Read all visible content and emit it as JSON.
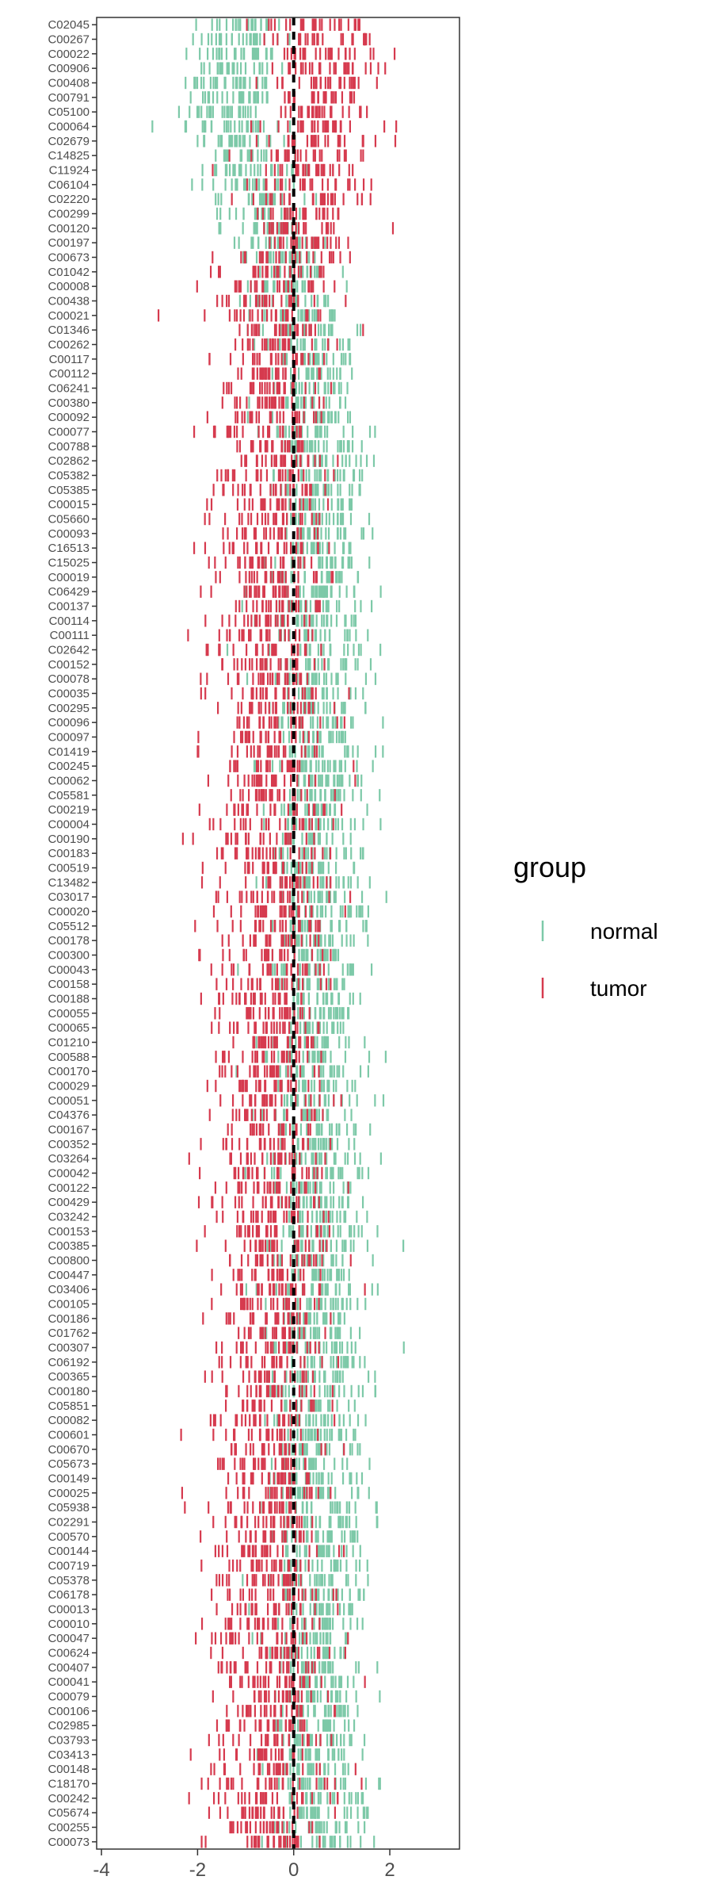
{
  "chart_data": {
    "type": "strip",
    "categories": [
      "C02045",
      "C00267",
      "C00022",
      "C00906",
      "C00408",
      "C00791",
      "C05100",
      "C00064",
      "C02679",
      "C14825",
      "C11924",
      "C06104",
      "C02220",
      "C00299",
      "C00120",
      "C00197",
      "C00673",
      "C01042",
      "C00008",
      "C00438",
      "C00021",
      "C01346",
      "C00262",
      "C00117",
      "C00112",
      "C06241",
      "C00380",
      "C00092",
      "C00077",
      "C00788",
      "C02862",
      "C05382",
      "C05385",
      "C00015",
      "C05660",
      "C00093",
      "C16513",
      "C15025",
      "C00019",
      "C06429",
      "C00137",
      "C00114",
      "C00111",
      "C02642",
      "C00152",
      "C00078",
      "C00035",
      "C00295",
      "C00096",
      "C00097",
      "C01419",
      "C00245",
      "C00062",
      "C05581",
      "C00219",
      "C00004",
      "C00190",
      "C00183",
      "C00519",
      "C13482",
      "C03017",
      "C00020",
      "C05512",
      "C00178",
      "C00300",
      "C00043",
      "C00158",
      "C00188",
      "C00055",
      "C00065",
      "C01210",
      "C00588",
      "C00170",
      "C00029",
      "C00051",
      "C04376",
      "C00167",
      "C00352",
      "C03264",
      "C00042",
      "C00122",
      "C00429",
      "C03242",
      "C00153",
      "C00385",
      "C00800",
      "C00447",
      "C03406",
      "C00105",
      "C00186",
      "C01762",
      "C00307",
      "C06192",
      "C00365",
      "C00180",
      "C05851",
      "C00082",
      "C00601",
      "C00670",
      "C05673",
      "C00149",
      "C00025",
      "C05938",
      "C02291",
      "C00570",
      "C00144",
      "C00719",
      "C05378",
      "C06178",
      "C00013",
      "C00010",
      "C00047",
      "C00624",
      "C00407",
      "C00041",
      "C00079",
      "C00106",
      "C02985",
      "C03793",
      "C03413",
      "C00148",
      "C18170",
      "C00242",
      "C05674",
      "C00255",
      "C00073"
    ],
    "xlim": [
      -4.1,
      3.45
    ],
    "xticks": [
      "-4",
      "-2",
      "0",
      "2"
    ],
    "reference_line_x": 0,
    "legend": {
      "title": "group",
      "position": "right",
      "entries": [
        {
          "name": "normal",
          "color": "#7dc9a8"
        },
        {
          "name": "tumor",
          "color": "#d63a4e"
        }
      ]
    },
    "series": [
      {
        "name": "normal",
        "color": "#7dc9a8",
        "mean_by_row": [
          -1.0,
          -1.1,
          -1.2,
          -1.3,
          -1.3,
          -1.3,
          -1.3,
          -1.2,
          -1.1,
          -1.0,
          -0.9,
          -0.8,
          -0.7,
          -0.6,
          -0.5,
          -0.4,
          -0.3,
          -0.2,
          -0.1,
          0.0,
          0.1,
          0.2,
          0.3,
          0.35,
          0.4,
          0.45,
          0.5,
          0.5,
          0.5,
          0.5,
          0.5,
          0.5,
          0.5,
          0.5,
          0.5,
          0.5,
          0.5,
          0.5,
          0.5,
          0.5,
          0.5,
          0.5,
          0.5,
          0.5,
          0.5,
          0.5,
          0.5,
          0.5,
          0.5,
          0.5,
          0.5,
          0.5,
          0.5,
          0.5,
          0.5,
          0.5,
          0.5,
          0.5,
          0.5,
          0.5,
          0.5,
          0.5,
          0.5,
          0.5,
          0.5,
          0.5,
          0.5,
          0.5,
          0.5,
          0.5,
          0.5,
          0.5,
          0.5,
          0.5,
          0.5,
          0.5,
          0.5,
          0.5,
          0.5,
          0.5,
          0.5,
          0.5,
          0.5,
          0.5,
          0.5,
          0.5,
          0.5,
          0.5,
          0.5,
          0.5,
          0.5,
          0.5,
          0.5,
          0.5,
          0.5,
          0.5,
          0.5,
          0.5,
          0.5,
          0.5,
          0.5,
          0.5,
          0.5,
          0.5,
          0.5,
          0.5,
          0.5,
          0.5,
          0.5,
          0.5,
          0.5,
          0.5,
          0.5,
          0.5,
          0.5,
          0.5,
          0.5,
          0.5,
          0.5,
          0.5,
          0.5,
          0.5,
          0.5,
          0.5,
          0.5,
          0.5
        ],
        "sd": 0.5
      },
      {
        "name": "tumor",
        "color": "#d63a4e",
        "mean_by_row": [
          0.6,
          0.6,
          0.6,
          0.6,
          0.6,
          0.55,
          0.5,
          0.5,
          0.45,
          0.4,
          0.35,
          0.3,
          0.25,
          0.2,
          0.1,
          0.0,
          -0.1,
          -0.2,
          -0.3,
          -0.35,
          -0.4,
          -0.45,
          -0.5,
          -0.5,
          -0.5,
          -0.5,
          -0.5,
          -0.5,
          -0.5,
          -0.5,
          -0.5,
          -0.5,
          -0.5,
          -0.5,
          -0.5,
          -0.5,
          -0.5,
          -0.5,
          -0.5,
          -0.5,
          -0.5,
          -0.5,
          -0.5,
          -0.5,
          -0.5,
          -0.5,
          -0.5,
          -0.5,
          -0.5,
          -0.5,
          -0.5,
          -0.5,
          -0.5,
          -0.5,
          -0.5,
          -0.5,
          -0.5,
          -0.5,
          -0.5,
          -0.5,
          -0.5,
          -0.5,
          -0.5,
          -0.5,
          -0.5,
          -0.5,
          -0.5,
          -0.5,
          -0.5,
          -0.5,
          -0.5,
          -0.5,
          -0.5,
          -0.5,
          -0.5,
          -0.5,
          -0.5,
          -0.5,
          -0.5,
          -0.5,
          -0.5,
          -0.5,
          -0.5,
          -0.5,
          -0.5,
          -0.5,
          -0.5,
          -0.5,
          -0.5,
          -0.5,
          -0.5,
          -0.5,
          -0.5,
          -0.5,
          -0.5,
          -0.5,
          -0.5,
          -0.5,
          -0.5,
          -0.5,
          -0.5,
          -0.5,
          -0.5,
          -0.5,
          -0.5,
          -0.5,
          -0.5,
          -0.5,
          -0.5,
          -0.5,
          -0.5,
          -0.5,
          -0.5,
          -0.5,
          -0.5,
          -0.5,
          -0.5,
          -0.5,
          -0.5,
          -0.5,
          -0.5,
          -0.5,
          -0.5,
          -0.5,
          -0.5,
          -0.5,
          -0.5
        ],
        "sd": 0.6
      }
    ],
    "points_per_group_per_row": 25
  }
}
